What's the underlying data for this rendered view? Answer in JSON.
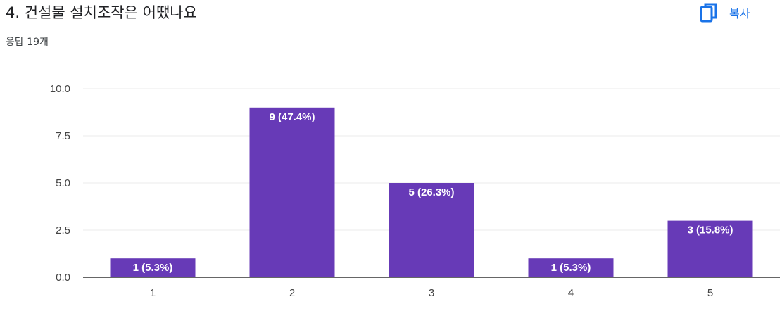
{
  "header": {
    "question_title": "4. 건설물 설치조작은 어땠나요",
    "response_count": "응답 19개",
    "copy_label": "복사",
    "copy_icon": "copy-icon"
  },
  "colors": {
    "bar": "#673ab7",
    "accent": "#1a73e8",
    "grid": "#ebebeb",
    "axis": "#333333"
  },
  "chart_data": {
    "type": "bar",
    "categories": [
      "1",
      "2",
      "3",
      "4",
      "5"
    ],
    "values": [
      1,
      9,
      5,
      1,
      3
    ],
    "data_labels": [
      "1 (5.3%)",
      "9 (47.4%)",
      "5 (26.3%)",
      "1 (5.3%)",
      "3 (15.8%)"
    ],
    "y_ticks": [
      "0.0",
      "2.5",
      "5.0",
      "7.5",
      "10.0"
    ],
    "ylim": [
      0,
      10
    ],
    "grid": true,
    "title": "",
    "xlabel": "",
    "ylabel": ""
  }
}
